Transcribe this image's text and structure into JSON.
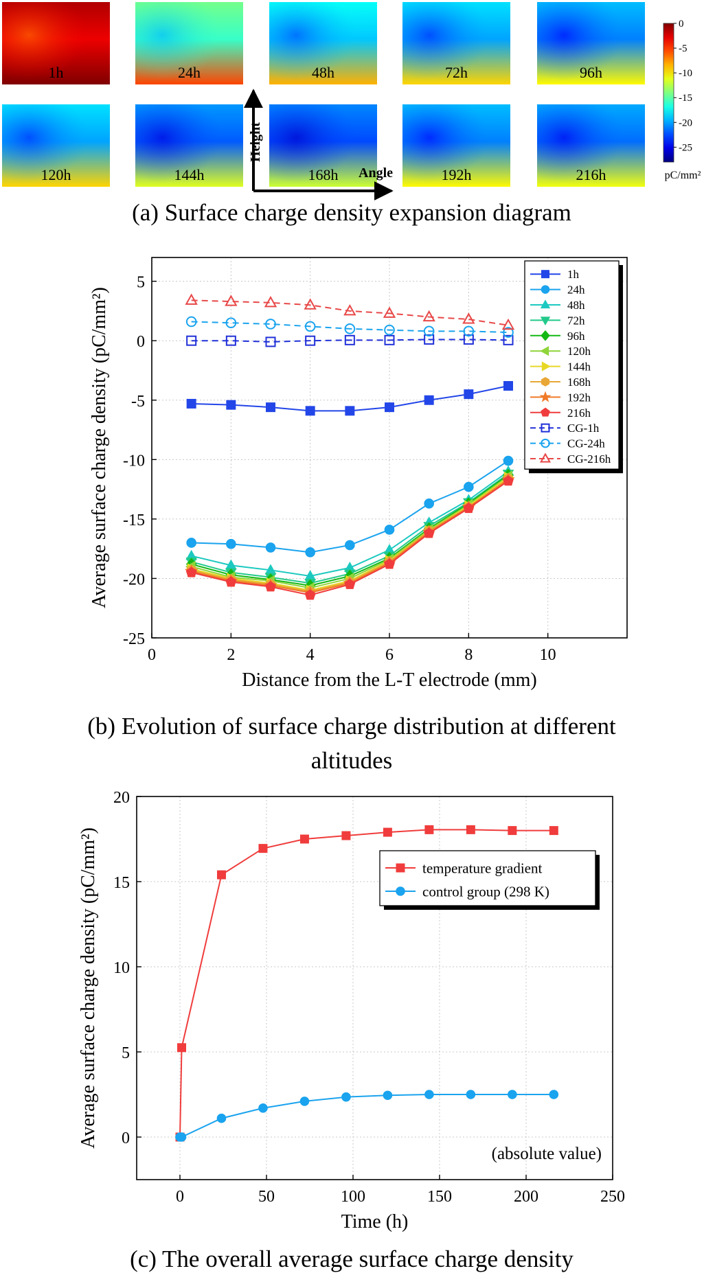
{
  "chart_data": [
    {
      "type": "heatmap",
      "title": "(a) Surface charge density expansion diagram",
      "panels": [
        {
          "label": "1h",
          "level": -3
        },
        {
          "label": "24h",
          "level": -16
        },
        {
          "label": "48h",
          "level": -19
        },
        {
          "label": "72h",
          "level": -20
        },
        {
          "label": "96h",
          "level": -21
        },
        {
          "label": "120h",
          "level": -20
        },
        {
          "label": "144h",
          "level": -22
        },
        {
          "label": "168h",
          "level": -22.5
        },
        {
          "label": "192h",
          "level": -21
        },
        {
          "label": "216h",
          "level": -21.5
        }
      ],
      "axis_labels": {
        "vertical": "Height",
        "horizontal": "Angle"
      },
      "colorbar": {
        "range": [
          -28,
          0
        ],
        "ticks": [
          "0",
          "-5",
          "-10",
          "-15",
          "-20",
          "-25"
        ],
        "unit": "pC/mm²"
      }
    },
    {
      "type": "line",
      "title": "(b) Evolution of surface charge distribution at different altitudes",
      "xlabel": "Distance from the L-T electrode (mm)",
      "ylabel": "Average surface charge density (pC/mm²)",
      "xlim": [
        0,
        12
      ],
      "ylim": [
        -25,
        7
      ],
      "xticks": [
        0,
        2,
        4,
        6,
        8,
        10
      ],
      "yticks": [
        5,
        0,
        -5,
        -10,
        -15,
        -20,
        -25
      ],
      "grid": true,
      "legend": "top-right",
      "x": [
        1,
        2,
        3,
        4,
        5,
        6,
        7,
        8,
        9
      ],
      "series": [
        {
          "name": "1h",
          "values": [
            -5.3,
            -5.4,
            -5.6,
            -5.9,
            -5.9,
            -5.6,
            -5.0,
            -4.5,
            -3.8
          ],
          "color": "#2346e8",
          "marker": "square",
          "filled": true,
          "dashed": false
        },
        {
          "name": "24h",
          "values": [
            -17.0,
            -17.1,
            -17.4,
            -17.8,
            -17.2,
            -15.9,
            -13.7,
            -12.3,
            -10.1
          ],
          "color": "#1aa3ee",
          "marker": "circle",
          "filled": true,
          "dashed": false
        },
        {
          "name": "48h",
          "values": [
            -18.1,
            -18.9,
            -19.3,
            -19.8,
            -19.1,
            -17.6,
            -15.3,
            -13.4,
            -11.0
          ],
          "color": "#1cc9c0",
          "marker": "triangle-up",
          "filled": true,
          "dashed": false
        },
        {
          "name": "72h",
          "values": [
            -18.6,
            -19.5,
            -19.9,
            -20.4,
            -19.6,
            -18.1,
            -15.6,
            -13.6,
            -11.2
          ],
          "color": "#22c98a",
          "marker": "triangle-down",
          "filled": true,
          "dashed": false
        },
        {
          "name": "96h",
          "values": [
            -18.8,
            -19.7,
            -20.1,
            -20.6,
            -19.8,
            -18.3,
            -15.8,
            -13.7,
            -11.3
          ],
          "color": "#14b814",
          "marker": "diamond",
          "filled": true,
          "dashed": false
        },
        {
          "name": "120h",
          "values": [
            -19.0,
            -19.9,
            -20.2,
            -20.8,
            -20.0,
            -18.4,
            -15.9,
            -13.8,
            -11.4
          ],
          "color": "#8fd43a",
          "marker": "triangle-left",
          "filled": true,
          "dashed": false
        },
        {
          "name": "144h",
          "values": [
            -19.2,
            -20.0,
            -20.4,
            -21.0,
            -20.2,
            -18.5,
            -16.0,
            -13.9,
            -11.5
          ],
          "color": "#e8d826",
          "marker": "triangle-right",
          "filled": true,
          "dashed": false
        },
        {
          "name": "168h",
          "values": [
            -19.3,
            -20.1,
            -20.5,
            -21.1,
            -20.3,
            -18.6,
            -16.0,
            -14.0,
            -11.6
          ],
          "color": "#e8a736",
          "marker": "hexagon",
          "filled": true,
          "dashed": false
        },
        {
          "name": "192h",
          "values": [
            -19.4,
            -20.2,
            -20.6,
            -21.2,
            -20.4,
            -18.7,
            -16.1,
            -14.0,
            -11.7
          ],
          "color": "#f07a28",
          "marker": "star",
          "filled": true,
          "dashed": false
        },
        {
          "name": "216h",
          "values": [
            -19.5,
            -20.3,
            -20.7,
            -21.4,
            -20.5,
            -18.8,
            -16.2,
            -14.1,
            -11.8
          ],
          "color": "#f03c3c",
          "marker": "pentagon",
          "filled": true,
          "dashed": false
        },
        {
          "name": "CG-1h",
          "values": [
            0.0,
            0.0,
            -0.1,
            0.0,
            0.05,
            0.05,
            0.1,
            0.1,
            0.05
          ],
          "color": "#2030d8",
          "marker": "square",
          "filled": false,
          "dashed": true
        },
        {
          "name": "CG-24h",
          "values": [
            1.6,
            1.5,
            1.4,
            1.2,
            1.0,
            0.9,
            0.8,
            0.8,
            0.7
          ],
          "color": "#1aa3ee",
          "marker": "circle",
          "filled": false,
          "dashed": true
        },
        {
          "name": "CG-216h",
          "values": [
            3.4,
            3.3,
            3.2,
            3.0,
            2.5,
            2.3,
            2.0,
            1.8,
            1.3
          ],
          "color": "#e84848",
          "marker": "triangle-up",
          "filled": false,
          "dashed": true
        }
      ]
    },
    {
      "type": "line",
      "title": "(c) The overall average surface charge density",
      "xlabel": "Time (h)",
      "ylabel": "Average surface charge density (pC/mm²)",
      "xlim": [
        -25,
        250
      ],
      "ylim": [
        -2.5,
        20
      ],
      "xticks": [
        0,
        50,
        100,
        150,
        200,
        250
      ],
      "yticks": [
        20,
        15,
        10,
        5,
        0
      ],
      "grid": true,
      "legend": "top-right",
      "annotation": "(absolute value)",
      "x": [
        0,
        1,
        24,
        48,
        72,
        96,
        120,
        144,
        168,
        192,
        216
      ],
      "series": [
        {
          "name": "temperature gradient",
          "values": [
            0,
            5.25,
            15.4,
            16.95,
            17.5,
            17.7,
            17.9,
            18.05,
            18.05,
            18.0,
            18.0
          ],
          "color": "#f03c3c",
          "marker": "square",
          "filled": true,
          "dashed": false
        },
        {
          "name": "control group (298 K)",
          "values": [
            0,
            0,
            1.1,
            1.7,
            2.1,
            2.35,
            2.45,
            2.5,
            2.5,
            2.5,
            2.5
          ],
          "color": "#1aa3ee",
          "marker": "circle",
          "filled": true,
          "dashed": false
        }
      ]
    }
  ]
}
